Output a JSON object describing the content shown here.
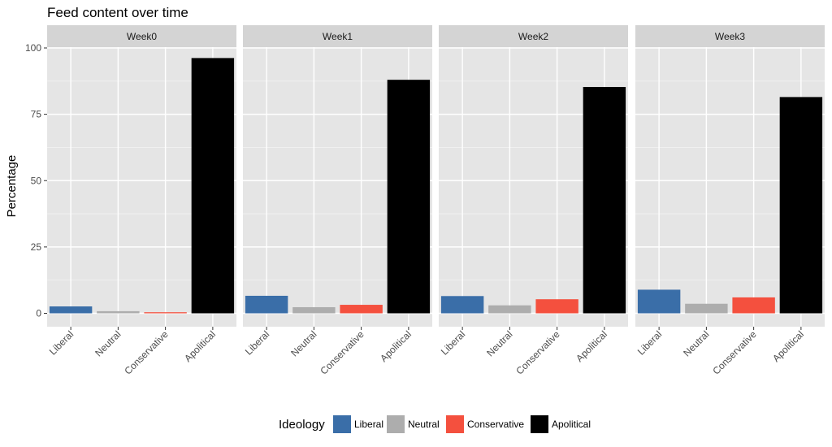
{
  "chart_data": {
    "type": "bar",
    "title": "Feed content over time",
    "ylabel": "Percentage",
    "xlabel": "",
    "ylim": [
      0,
      100
    ],
    "yticks": [
      0,
      25,
      50,
      75,
      100
    ],
    "grid": true,
    "categories": [
      "Liberal",
      "Neutral",
      "Conservative",
      "Apolitical"
    ],
    "colors": {
      "Liberal": "#3a6ea8",
      "Neutral": "#adadad",
      "Conservative": "#f4503e",
      "Apolitical": "#000000"
    },
    "panel_background": "#e5e5e5",
    "strip_background": "#d4d4d4",
    "facets": [
      {
        "label": "Week0",
        "values": [
          2.6,
          0.8,
          0.4,
          96.2
        ]
      },
      {
        "label": "Week1",
        "values": [
          6.6,
          2.3,
          3.2,
          88.0
        ]
      },
      {
        "label": "Week2",
        "values": [
          6.5,
          3.0,
          5.3,
          85.3
        ]
      },
      {
        "label": "Week3",
        "values": [
          8.9,
          3.6,
          6.0,
          81.5
        ]
      }
    ],
    "legend": {
      "title": "Ideology",
      "position": "bottom",
      "items": [
        "Liberal",
        "Neutral",
        "Conservative",
        "Apolitical"
      ]
    }
  }
}
